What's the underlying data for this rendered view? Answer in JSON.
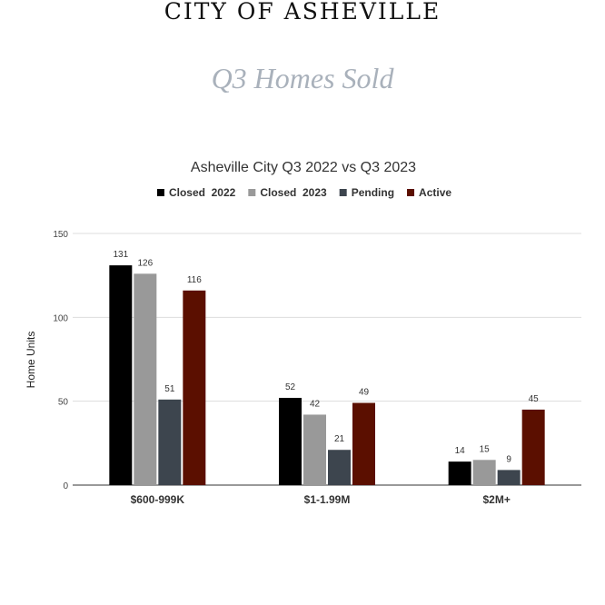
{
  "header": {
    "title": "CITY OF ASHEVILLE",
    "subtitle": "Q3 Homes Sold"
  },
  "chart_data": {
    "type": "bar",
    "title": "Asheville City Q3 2022 vs Q3 2023",
    "xlabel": "",
    "ylabel": "Home Units",
    "ylim": [
      0,
      150
    ],
    "yticks": [
      0,
      50,
      100,
      150
    ],
    "grid": true,
    "legend_position": "top",
    "categories": [
      "$600-999K",
      "$1-1.99M",
      "$2M+"
    ],
    "series": [
      {
        "name": "Closed  2022",
        "color": "#000000",
        "values": [
          131,
          52,
          14
        ]
      },
      {
        "name": "Closed  2023",
        "color": "#999999",
        "values": [
          126,
          42,
          15
        ]
      },
      {
        "name": "Pending",
        "color": "#3d454e",
        "values": [
          51,
          21,
          9
        ]
      },
      {
        "name": "Active",
        "color": "#5b0f00",
        "values": [
          116,
          49,
          45
        ]
      }
    ]
  }
}
